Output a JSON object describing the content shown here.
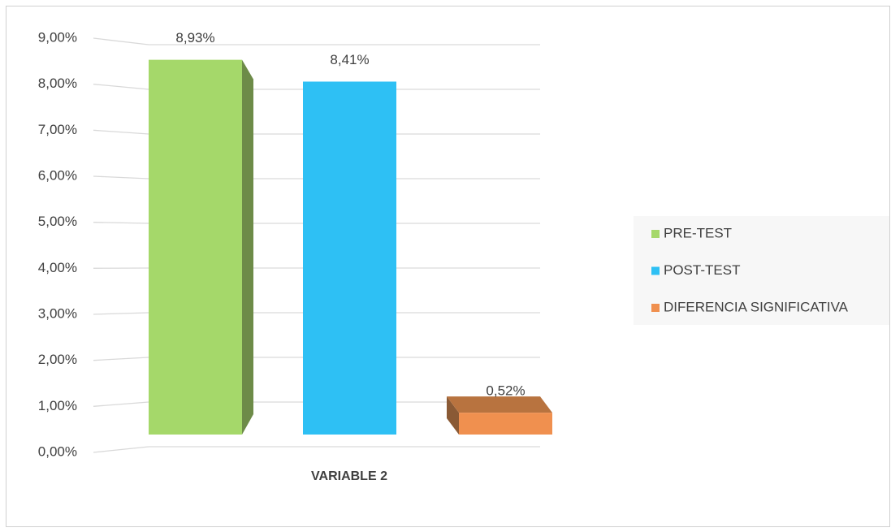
{
  "chart_data": {
    "type": "bar3d",
    "categories": [
      "VARIABLE 2"
    ],
    "series": [
      {
        "name": "PRE-TEST",
        "color": "#a5d86a",
        "values": [
          8.93
        ],
        "value_labels": [
          "8,93%"
        ]
      },
      {
        "name": "POST-TEST",
        "color": "#2ec0f4",
        "values": [
          8.41
        ],
        "value_labels": [
          "8,41%"
        ]
      },
      {
        "name": "DIFERENCIA SIGNIFICATIVA",
        "color": "#f0904f",
        "values": [
          0.52
        ],
        "value_labels": [
          "0,52%"
        ]
      }
    ],
    "ylim": [
      0,
      9
    ],
    "yticks": [
      {
        "value": 0,
        "label": "0,00%"
      },
      {
        "value": 1,
        "label": "1,00%"
      },
      {
        "value": 2,
        "label": "2,00%"
      },
      {
        "value": 3,
        "label": "3,00%"
      },
      {
        "value": 4,
        "label": "4,00%"
      },
      {
        "value": 5,
        "label": "5,00%"
      },
      {
        "value": 6,
        "label": "6,00%"
      },
      {
        "value": 7,
        "label": "7,00%"
      },
      {
        "value": 8,
        "label": "8,00%"
      },
      {
        "value": 9,
        "label": "9,00%"
      }
    ],
    "grid": true,
    "legend": "right"
  }
}
